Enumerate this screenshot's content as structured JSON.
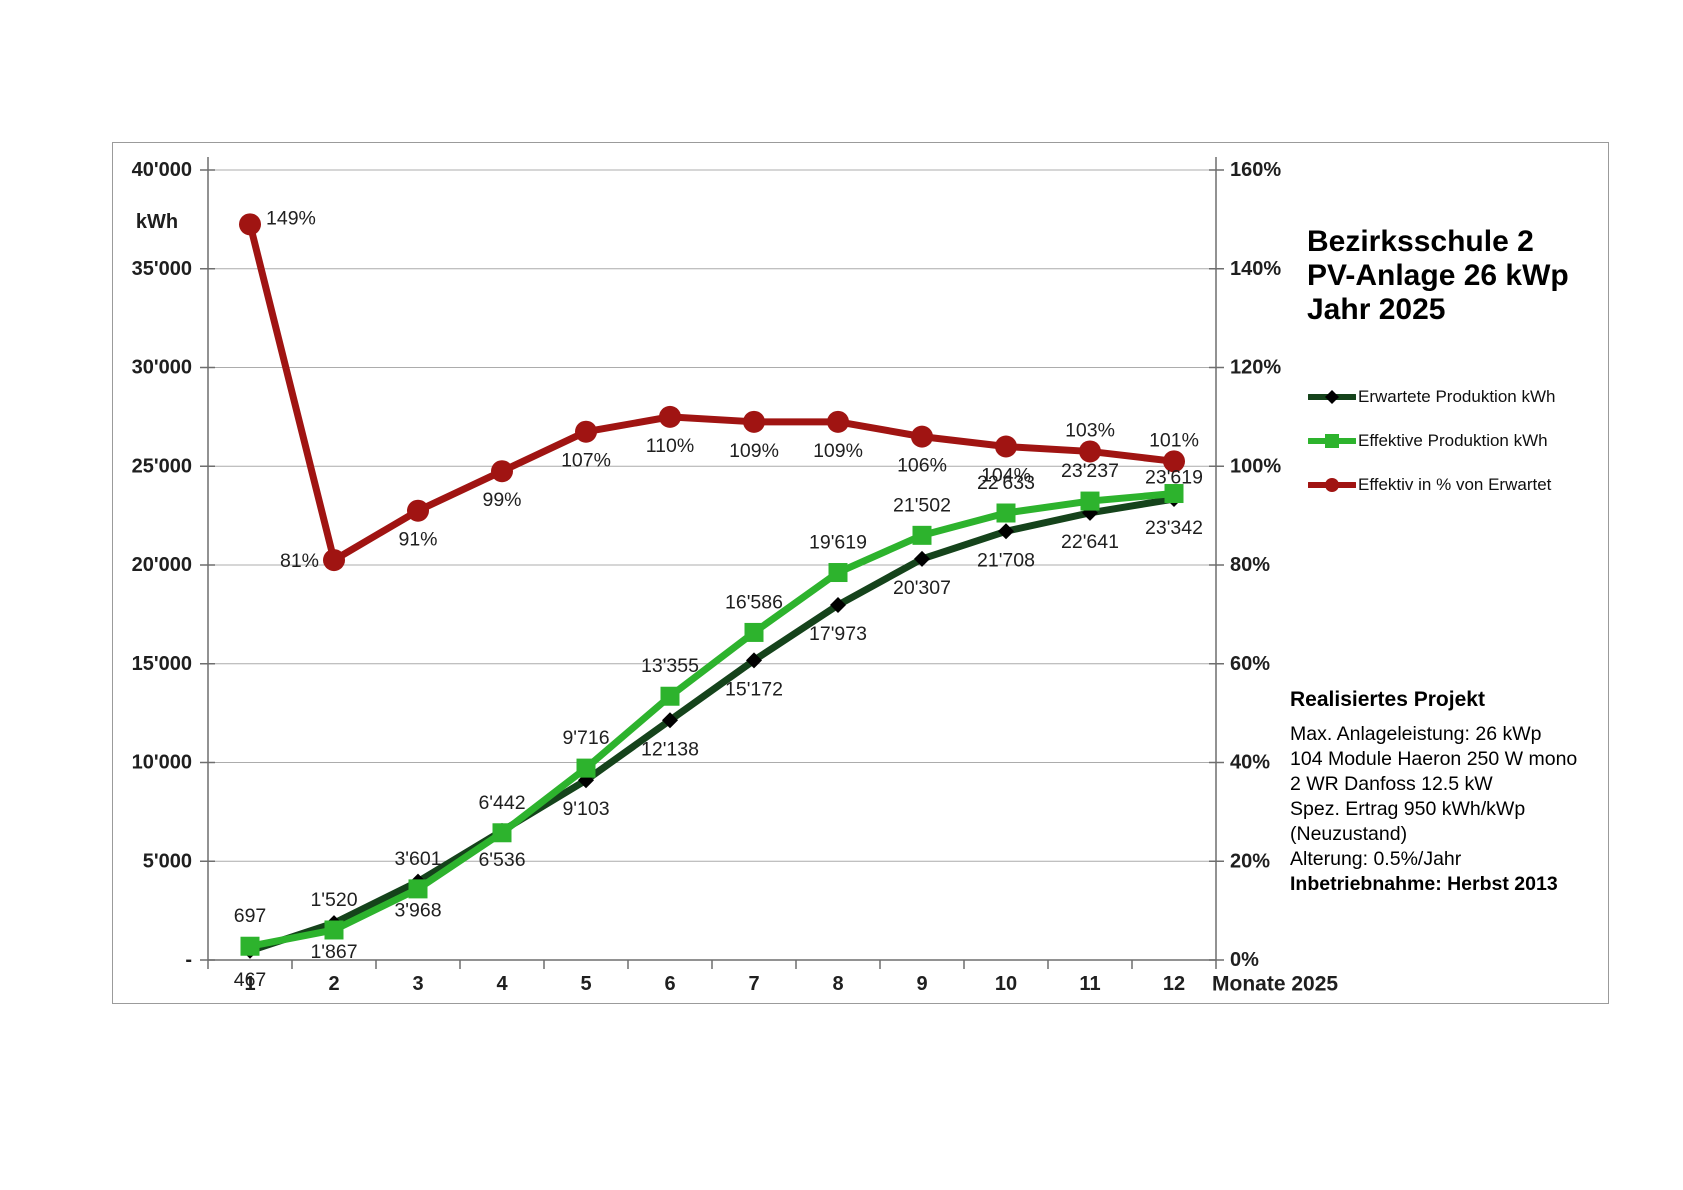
{
  "chart_title": {
    "lines": [
      "Bezirksschule 2",
      "PV-Anlage 26 kWp",
      "Jahr 2025"
    ]
  },
  "info_box": {
    "heading": "Realisiertes Projekt",
    "lines": [
      "Max. Anlageleistung: 26 kWp",
      "104 Module Haeron 250 W mono",
      "2 WR Danfoss 12.5 kW",
      "Spez. Ertrag 950 kWh/kWp",
      "(Neuzustand)",
      "Alterung: 0.5%/Jahr"
    ],
    "footer_bold": "Inbetriebnahme: Herbst 2013"
  },
  "chart_data": {
    "type": "line",
    "title": "Bezirksschule 2 PV-Anlage 26 kWp Jahr 2025",
    "xlabel": "Monate 2025",
    "ylabel_left": "kWh",
    "categories": [
      "1",
      "2",
      "3",
      "4",
      "5",
      "6",
      "7",
      "8",
      "9",
      "10",
      "11",
      "12"
    ],
    "grid": true,
    "legend_position": "right",
    "left_axis": {
      "min": 0,
      "max": 40000,
      "step": 5000,
      "tick_labels": [
        "-",
        "5'000",
        "10'000",
        "15'000",
        "20'000",
        "25'000",
        "30'000",
        "35'000",
        "40'000"
      ]
    },
    "right_axis": {
      "min": 0,
      "max": 160,
      "step": 20,
      "tick_labels": [
        "0%",
        "20%",
        "40%",
        "60%",
        "80%",
        "100%",
        "120%",
        "140%",
        "160%"
      ]
    },
    "series": [
      {
        "name": "Erwartete Produktion kWh",
        "axis": "left",
        "color": "#15431B",
        "marker": "diamond",
        "marker_color": "#000000",
        "values": [
          467,
          1867,
          3968,
          6536,
          9103,
          12138,
          15172,
          17973,
          20307,
          21708,
          22641,
          23342
        ],
        "labels": [
          "467",
          "1'867",
          "3'968",
          "6'536",
          "9'103",
          "12'138",
          "15'172",
          "17'973",
          "20'307",
          "21'708",
          "22'641",
          "23'342"
        ],
        "label_placement": "below",
        "label_placement_overrides": {}
      },
      {
        "name": "Effektive Produktion kWh",
        "axis": "left",
        "color": "#2DB32D",
        "marker": "square",
        "marker_color": "#2DB32D",
        "values": [
          697,
          1520,
          3601,
          6442,
          9716,
          13355,
          16586,
          19619,
          21502,
          22633,
          23237,
          23619
        ],
        "labels": [
          "697",
          "1'520",
          "3'601",
          "6'442",
          "9'716",
          "13'355",
          "16'586",
          "19'619",
          "21'502",
          "22'633",
          "23'237",
          "23'619"
        ],
        "label_placement": "above",
        "label_placement_overrides": {
          "11": "above-near"
        }
      },
      {
        "name": "Effektiv in % von Erwartet",
        "axis": "right",
        "color": "#A01412",
        "marker": "circle",
        "marker_color": "#A01412",
        "values": [
          149,
          81,
          91,
          99,
          107,
          110,
          109,
          109,
          106,
          104,
          103,
          101
        ],
        "labels": [
          "149%",
          "81%",
          "91%",
          "99%",
          "107%",
          "110%",
          "109%",
          "109%",
          "106%",
          "104%",
          "103%",
          "101%"
        ],
        "label_placement": "below",
        "label_placement_overrides": {
          "0": "right",
          "1": "left",
          "10": "above-pct",
          "11": "above-pct"
        }
      }
    ]
  }
}
